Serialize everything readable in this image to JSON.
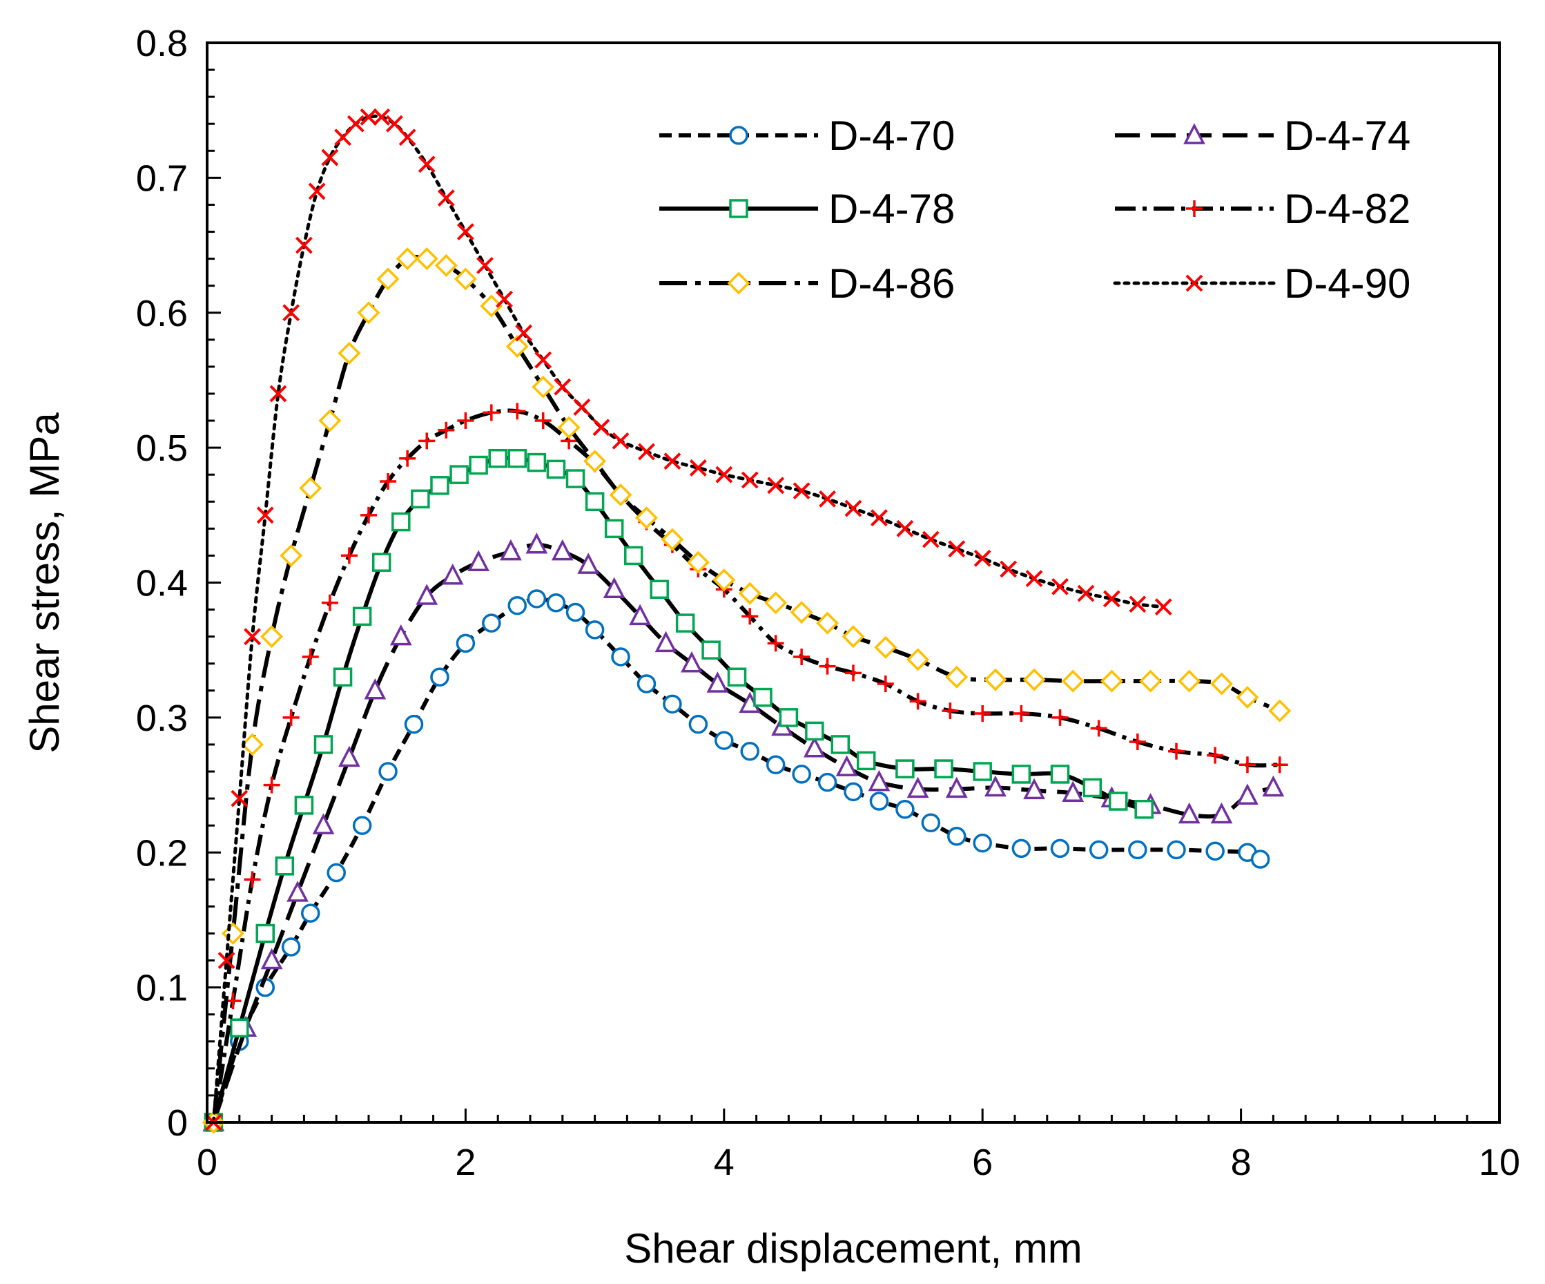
{
  "chart_data": {
    "type": "scatter",
    "title": "",
    "xlabel": "Shear displacement, mm",
    "ylabel": "Shear stress, MPa",
    "xlim": [
      0,
      10
    ],
    "ylim": [
      0,
      0.8
    ],
    "xticks": [
      0,
      2,
      4,
      6,
      8,
      10
    ],
    "xtick_labels": [
      "0",
      "2",
      "4",
      "6",
      "8",
      "10"
    ],
    "yticks": [
      0,
      0.1,
      0.2,
      0.3,
      0.4,
      0.5,
      0.6,
      0.7,
      0.8
    ],
    "ytick_labels": [
      "0",
      "0.1",
      "0.2",
      "0.3",
      "0.4",
      "0.5",
      "0.6",
      "0.7",
      "0.8"
    ],
    "grid": false,
    "legend_position": "top-right",
    "series": [
      {
        "name": "D-4-70",
        "color": "#0070C0",
        "marker": "circle",
        "line_style": "dash",
        "x": [
          0.05,
          0.25,
          0.45,
          0.65,
          0.8,
          1.0,
          1.2,
          1.4,
          1.6,
          1.8,
          2.0,
          2.2,
          2.4,
          2.55,
          2.7,
          2.85,
          3.0,
          3.2,
          3.4,
          3.6,
          3.8,
          4.0,
          4.2,
          4.4,
          4.6,
          4.8,
          5.0,
          5.2,
          5.4,
          5.6,
          5.8,
          6.0,
          6.3,
          6.6,
          6.9,
          7.2,
          7.5,
          7.8,
          8.05,
          8.15
        ],
        "y": [
          0.0,
          0.06,
          0.1,
          0.13,
          0.155,
          0.185,
          0.22,
          0.26,
          0.295,
          0.33,
          0.355,
          0.37,
          0.383,
          0.388,
          0.385,
          0.378,
          0.365,
          0.345,
          0.325,
          0.31,
          0.295,
          0.283,
          0.275,
          0.265,
          0.258,
          0.252,
          0.245,
          0.238,
          0.232,
          0.222,
          0.212,
          0.207,
          0.203,
          0.203,
          0.202,
          0.202,
          0.202,
          0.201,
          0.2,
          0.195
        ]
      },
      {
        "name": "D-4-74",
        "color": "#7030A0",
        "marker": "triangle",
        "line_style": "long-dash",
        "x": [
          0.05,
          0.3,
          0.5,
          0.7,
          0.9,
          1.1,
          1.3,
          1.5,
          1.7,
          1.9,
          2.1,
          2.35,
          2.55,
          2.75,
          2.95,
          3.15,
          3.35,
          3.55,
          3.75,
          3.95,
          4.2,
          4.45,
          4.7,
          4.95,
          5.2,
          5.5,
          5.8,
          6.1,
          6.4,
          6.7,
          7.0,
          7.3,
          7.6,
          7.85,
          8.05,
          8.25
        ],
        "y": [
          0.0,
          0.07,
          0.12,
          0.17,
          0.22,
          0.27,
          0.32,
          0.36,
          0.39,
          0.405,
          0.415,
          0.423,
          0.428,
          0.423,
          0.413,
          0.395,
          0.375,
          0.355,
          0.34,
          0.325,
          0.31,
          0.293,
          0.277,
          0.263,
          0.252,
          0.247,
          0.247,
          0.248,
          0.246,
          0.244,
          0.24,
          0.235,
          0.228,
          0.228,
          0.242,
          0.248
        ]
      },
      {
        "name": "D-4-78",
        "color": "#00A651",
        "marker": "square",
        "line_style": "solid",
        "x": [
          0.05,
          0.25,
          0.45,
          0.6,
          0.75,
          0.9,
          1.05,
          1.2,
          1.35,
          1.5,
          1.65,
          1.8,
          1.95,
          2.1,
          2.25,
          2.4,
          2.55,
          2.7,
          2.85,
          3.0,
          3.15,
          3.3,
          3.5,
          3.7,
          3.9,
          4.1,
          4.3,
          4.5,
          4.7,
          4.9,
          5.1,
          5.4,
          5.7,
          6.0,
          6.3,
          6.6,
          6.85,
          7.05,
          7.25
        ],
        "y": [
          0.0,
          0.07,
          0.14,
          0.19,
          0.235,
          0.28,
          0.33,
          0.375,
          0.415,
          0.445,
          0.462,
          0.472,
          0.48,
          0.487,
          0.492,
          0.492,
          0.489,
          0.484,
          0.477,
          0.46,
          0.44,
          0.42,
          0.395,
          0.37,
          0.35,
          0.33,
          0.315,
          0.3,
          0.29,
          0.28,
          0.268,
          0.262,
          0.262,
          0.26,
          0.258,
          0.258,
          0.248,
          0.238,
          0.232
        ]
      },
      {
        "name": "D-4-82",
        "color": "#FF0000",
        "marker": "plus",
        "line_style": "dash-dot",
        "x": [
          0.05,
          0.2,
          0.35,
          0.5,
          0.65,
          0.8,
          0.95,
          1.1,
          1.25,
          1.4,
          1.55,
          1.7,
          1.85,
          2.0,
          2.2,
          2.4,
          2.6,
          2.8,
          3.0,
          3.2,
          3.4,
          3.6,
          3.8,
          4.0,
          4.2,
          4.4,
          4.6,
          4.8,
          5.0,
          5.25,
          5.5,
          5.75,
          6.0,
          6.3,
          6.6,
          6.9,
          7.2,
          7.5,
          7.8,
          8.05,
          8.3
        ],
        "y": [
          0.0,
          0.09,
          0.18,
          0.25,
          0.3,
          0.345,
          0.385,
          0.42,
          0.45,
          0.475,
          0.492,
          0.505,
          0.513,
          0.52,
          0.526,
          0.527,
          0.52,
          0.505,
          0.488,
          0.465,
          0.445,
          0.428,
          0.41,
          0.395,
          0.375,
          0.355,
          0.345,
          0.338,
          0.333,
          0.325,
          0.312,
          0.305,
          0.303,
          0.303,
          0.3,
          0.292,
          0.282,
          0.275,
          0.272,
          0.265,
          0.265
        ]
      },
      {
        "name": "D-4-86",
        "color": "#FFC000",
        "marker": "diamond",
        "line_style": "long-dash-dot",
        "x": [
          0.05,
          0.2,
          0.35,
          0.5,
          0.65,
          0.8,
          0.95,
          1.1,
          1.25,
          1.4,
          1.55,
          1.7,
          1.85,
          2.0,
          2.2,
          2.4,
          2.6,
          2.8,
          3.0,
          3.2,
          3.4,
          3.6,
          3.8,
          4.0,
          4.2,
          4.4,
          4.6,
          4.8,
          5.0,
          5.25,
          5.5,
          5.8,
          6.1,
          6.4,
          6.7,
          7.0,
          7.3,
          7.6,
          7.85,
          8.05,
          8.3
        ],
        "y": [
          0.0,
          0.14,
          0.28,
          0.36,
          0.42,
          0.47,
          0.52,
          0.57,
          0.6,
          0.625,
          0.64,
          0.64,
          0.635,
          0.625,
          0.605,
          0.575,
          0.545,
          0.515,
          0.49,
          0.465,
          0.448,
          0.432,
          0.415,
          0.402,
          0.392,
          0.385,
          0.378,
          0.37,
          0.36,
          0.352,
          0.343,
          0.33,
          0.328,
          0.328,
          0.327,
          0.327,
          0.327,
          0.327,
          0.325,
          0.315,
          0.305
        ]
      },
      {
        "name": "D-4-90",
        "color": "#FF0000",
        "marker": "x",
        "line_style": "dot",
        "x": [
          0.05,
          0.15,
          0.25,
          0.35,
          0.45,
          0.55,
          0.65,
          0.75,
          0.85,
          0.95,
          1.05,
          1.15,
          1.25,
          1.35,
          1.45,
          1.55,
          1.7,
          1.85,
          2.0,
          2.15,
          2.3,
          2.45,
          2.6,
          2.75,
          2.9,
          3.05,
          3.2,
          3.4,
          3.6,
          3.8,
          4.0,
          4.2,
          4.4,
          4.6,
          4.8,
          5.0,
          5.2,
          5.4,
          5.6,
          5.8,
          6.0,
          6.2,
          6.4,
          6.6,
          6.8,
          7.0,
          7.2,
          7.4
        ],
        "y": [
          0.0,
          0.12,
          0.24,
          0.36,
          0.45,
          0.54,
          0.6,
          0.65,
          0.69,
          0.715,
          0.73,
          0.74,
          0.745,
          0.745,
          0.74,
          0.73,
          0.71,
          0.685,
          0.66,
          0.635,
          0.61,
          0.585,
          0.565,
          0.545,
          0.53,
          0.515,
          0.505,
          0.497,
          0.49,
          0.485,
          0.48,
          0.476,
          0.472,
          0.468,
          0.462,
          0.455,
          0.448,
          0.44,
          0.432,
          0.425,
          0.418,
          0.41,
          0.403,
          0.397,
          0.392,
          0.388,
          0.384,
          0.382
        ]
      }
    ]
  }
}
